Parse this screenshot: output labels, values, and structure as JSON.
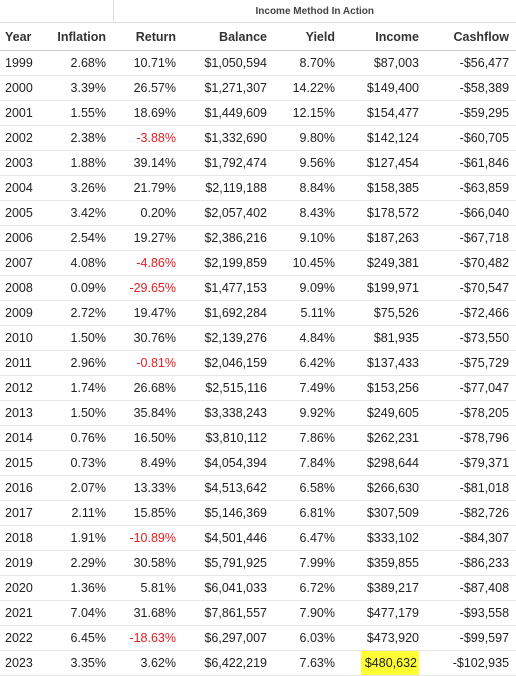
{
  "table": {
    "title": "Income Method In Action",
    "columns": [
      "Year",
      "Inflation",
      "Return",
      "Balance",
      "Yield",
      "Income",
      "Cashflow"
    ],
    "rows": [
      [
        "1999",
        "2.68%",
        "10.71%",
        "$1,050,594",
        "8.70%",
        "$87,003",
        "-$56,477"
      ],
      [
        "2000",
        "3.39%",
        "26.57%",
        "$1,271,307",
        "14.22%",
        "$149,400",
        "-$58,389"
      ],
      [
        "2001",
        "1.55%",
        "18.69%",
        "$1,449,609",
        "12.15%",
        "$154,477",
        "-$59,295"
      ],
      [
        "2002",
        "2.38%",
        "-3.88%",
        "$1,332,690",
        "9.80%",
        "$142,124",
        "-$60,705"
      ],
      [
        "2003",
        "1.88%",
        "39.14%",
        "$1,792,474",
        "9.56%",
        "$127,454",
        "-$61,846"
      ],
      [
        "2004",
        "3.26%",
        "21.79%",
        "$2,119,188",
        "8.84%",
        "$158,385",
        "-$63,859"
      ],
      [
        "2005",
        "3.42%",
        "0.20%",
        "$2,057,402",
        "8.43%",
        "$178,572",
        "-$66,040"
      ],
      [
        "2006",
        "2.54%",
        "19.27%",
        "$2,386,216",
        "9.10%",
        "$187,263",
        "-$67,718"
      ],
      [
        "2007",
        "4.08%",
        "-4.86%",
        "$2,199,859",
        "10.45%",
        "$249,381",
        "-$70,482"
      ],
      [
        "2008",
        "0.09%",
        "-29.65%",
        "$1,477,153",
        "9.09%",
        "$199,971",
        "-$70,547"
      ],
      [
        "2009",
        "2.72%",
        "19.47%",
        "$1,692,284",
        "5.11%",
        "$75,526",
        "-$72,466"
      ],
      [
        "2010",
        "1.50%",
        "30.76%",
        "$2,139,276",
        "4.84%",
        "$81,935",
        "-$73,550"
      ],
      [
        "2011",
        "2.96%",
        "-0.81%",
        "$2,046,159",
        "6.42%",
        "$137,433",
        "-$75,729"
      ],
      [
        "2012",
        "1.74%",
        "26.68%",
        "$2,515,116",
        "7.49%",
        "$153,256",
        "-$77,047"
      ],
      [
        "2013",
        "1.50%",
        "35.84%",
        "$3,338,243",
        "9.92%",
        "$249,605",
        "-$78,205"
      ],
      [
        "2014",
        "0.76%",
        "16.50%",
        "$3,810,112",
        "7.86%",
        "$262,231",
        "-$78,796"
      ],
      [
        "2015",
        "0.73%",
        "8.49%",
        "$4,054,394",
        "7.84%",
        "$298,644",
        "-$79,371"
      ],
      [
        "2016",
        "2.07%",
        "13.33%",
        "$4,513,642",
        "6.58%",
        "$266,630",
        "-$81,018"
      ],
      [
        "2017",
        "2.11%",
        "15.85%",
        "$5,146,369",
        "6.81%",
        "$307,509",
        "-$82,726"
      ],
      [
        "2018",
        "1.91%",
        "-10.89%",
        "$4,501,446",
        "6.47%",
        "$333,102",
        "-$84,307"
      ],
      [
        "2019",
        "2.29%",
        "30.58%",
        "$5,791,925",
        "7.99%",
        "$359,855",
        "-$86,233"
      ],
      [
        "2020",
        "1.36%",
        "5.81%",
        "$6,041,033",
        "6.72%",
        "$389,217",
        "-$87,408"
      ],
      [
        "2021",
        "7.04%",
        "31.68%",
        "$7,861,557",
        "7.90%",
        "$477,179",
        "-$93,558"
      ],
      [
        "2022",
        "6.45%",
        "-18.63%",
        "$6,297,007",
        "6.03%",
        "$473,920",
        "-$99,597"
      ],
      [
        "2023",
        "3.35%",
        "3.62%",
        "$6,422,219",
        "7.63%",
        "$480,632",
        "-$102,935"
      ]
    ]
  }
}
